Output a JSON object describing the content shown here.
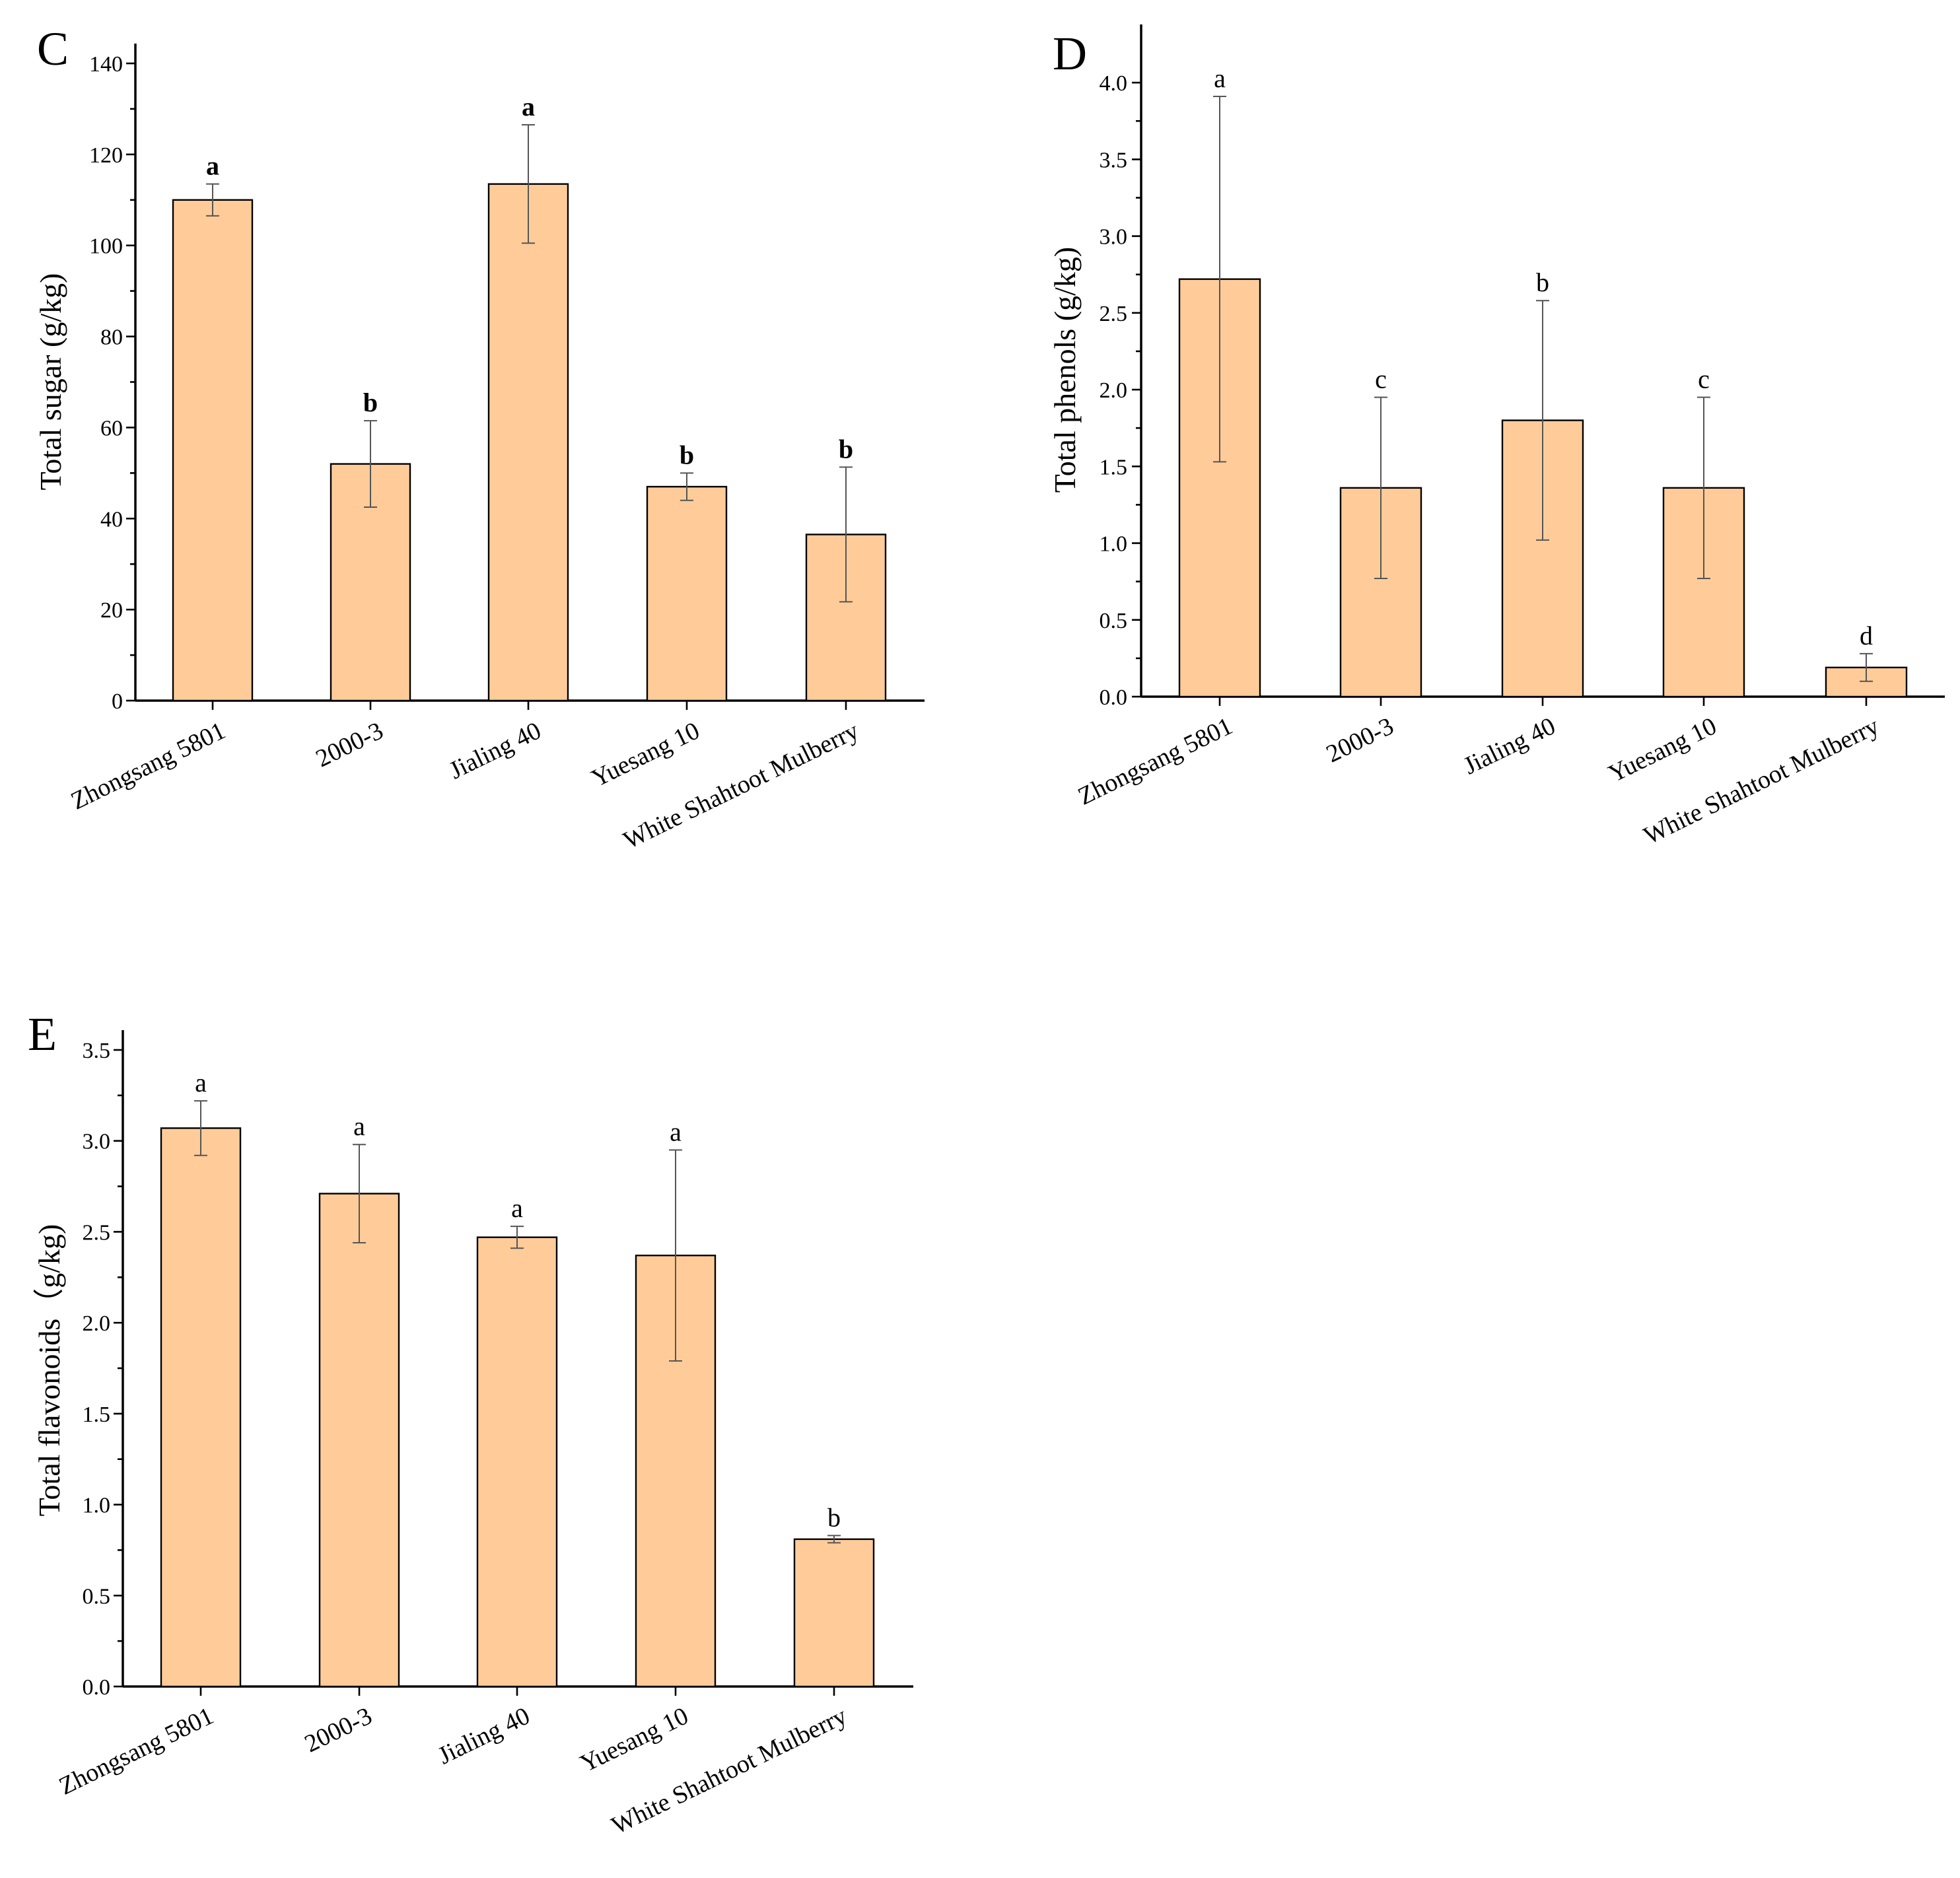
{
  "figure": {
    "bar_color": "#FFCC99",
    "axis_color": "#000000",
    "error_bar_color": "#555555"
  },
  "chart_data": [
    {
      "panel": "C",
      "type": "bar",
      "ylabel": "Total sugar (g/kg)",
      "xlabel": "",
      "ylim": [
        0,
        140
      ],
      "yticks": [
        0,
        20,
        40,
        60,
        80,
        100,
        120,
        140
      ],
      "ytick_labels": [
        "0",
        "20",
        "40",
        "60",
        "80",
        "100",
        "120",
        "140"
      ],
      "categories": [
        "Zhongsang 5801",
        "2000-3",
        "Jialing 40",
        "Yuesang 10",
        "White Shahtoot Mulberry"
      ],
      "values": [
        110,
        52,
        113.5,
        47,
        36.5
      ],
      "errors": [
        3.5,
        9.5,
        13,
        3,
        14.8
      ],
      "significance": [
        "a",
        "b",
        "a",
        "b",
        "b"
      ],
      "significance_bold": true
    },
    {
      "panel": "D",
      "type": "bar",
      "ylabel": "Total phenols (g/kg)",
      "xlabel": "",
      "ylim": [
        0,
        4.25
      ],
      "yticks": [
        0,
        0.5,
        1,
        1.5,
        2,
        2.5,
        3,
        3.5,
        4
      ],
      "ytick_labels": [
        "0.0",
        "0.5",
        "1.0",
        "1.5",
        "2.0",
        "2.5",
        "3.0",
        "3.5",
        "4.0"
      ],
      "categories": [
        "Zhongsang 5801",
        "2000-3",
        "Jialing 40",
        "Yuesang 10",
        "White Shahtoot Mulberry"
      ],
      "values": [
        2.72,
        1.36,
        1.8,
        1.36,
        0.19
      ],
      "errors": [
        1.19,
        0.59,
        0.78,
        0.59,
        0.09
      ],
      "significance": [
        "a",
        "c",
        "b",
        "c",
        "d"
      ],
      "significance_bold": false
    },
    {
      "panel": "E",
      "type": "bar",
      "ylabel": "Total flavonoids（g/kg)",
      "xlabel": "",
      "ylim": [
        0,
        3.5
      ],
      "yticks": [
        0,
        0.5,
        1,
        1.5,
        2,
        2.5,
        3,
        3.5
      ],
      "ytick_labels": [
        "0.0",
        "0.5",
        "1.0",
        "1.5",
        "2.0",
        "2.5",
        "3.0",
        "3.5"
      ],
      "categories": [
        "Zhongsang 5801",
        "2000-3",
        "Jialing 40",
        "Yuesang 10",
        "White Shahtoot Mulberry"
      ],
      "values": [
        3.07,
        2.71,
        2.47,
        2.37,
        0.81
      ],
      "errors": [
        0.15,
        0.27,
        0.06,
        0.58,
        0.02
      ],
      "significance": [
        "a",
        "a",
        "a",
        "a",
        "b"
      ],
      "significance_bold": false
    }
  ]
}
